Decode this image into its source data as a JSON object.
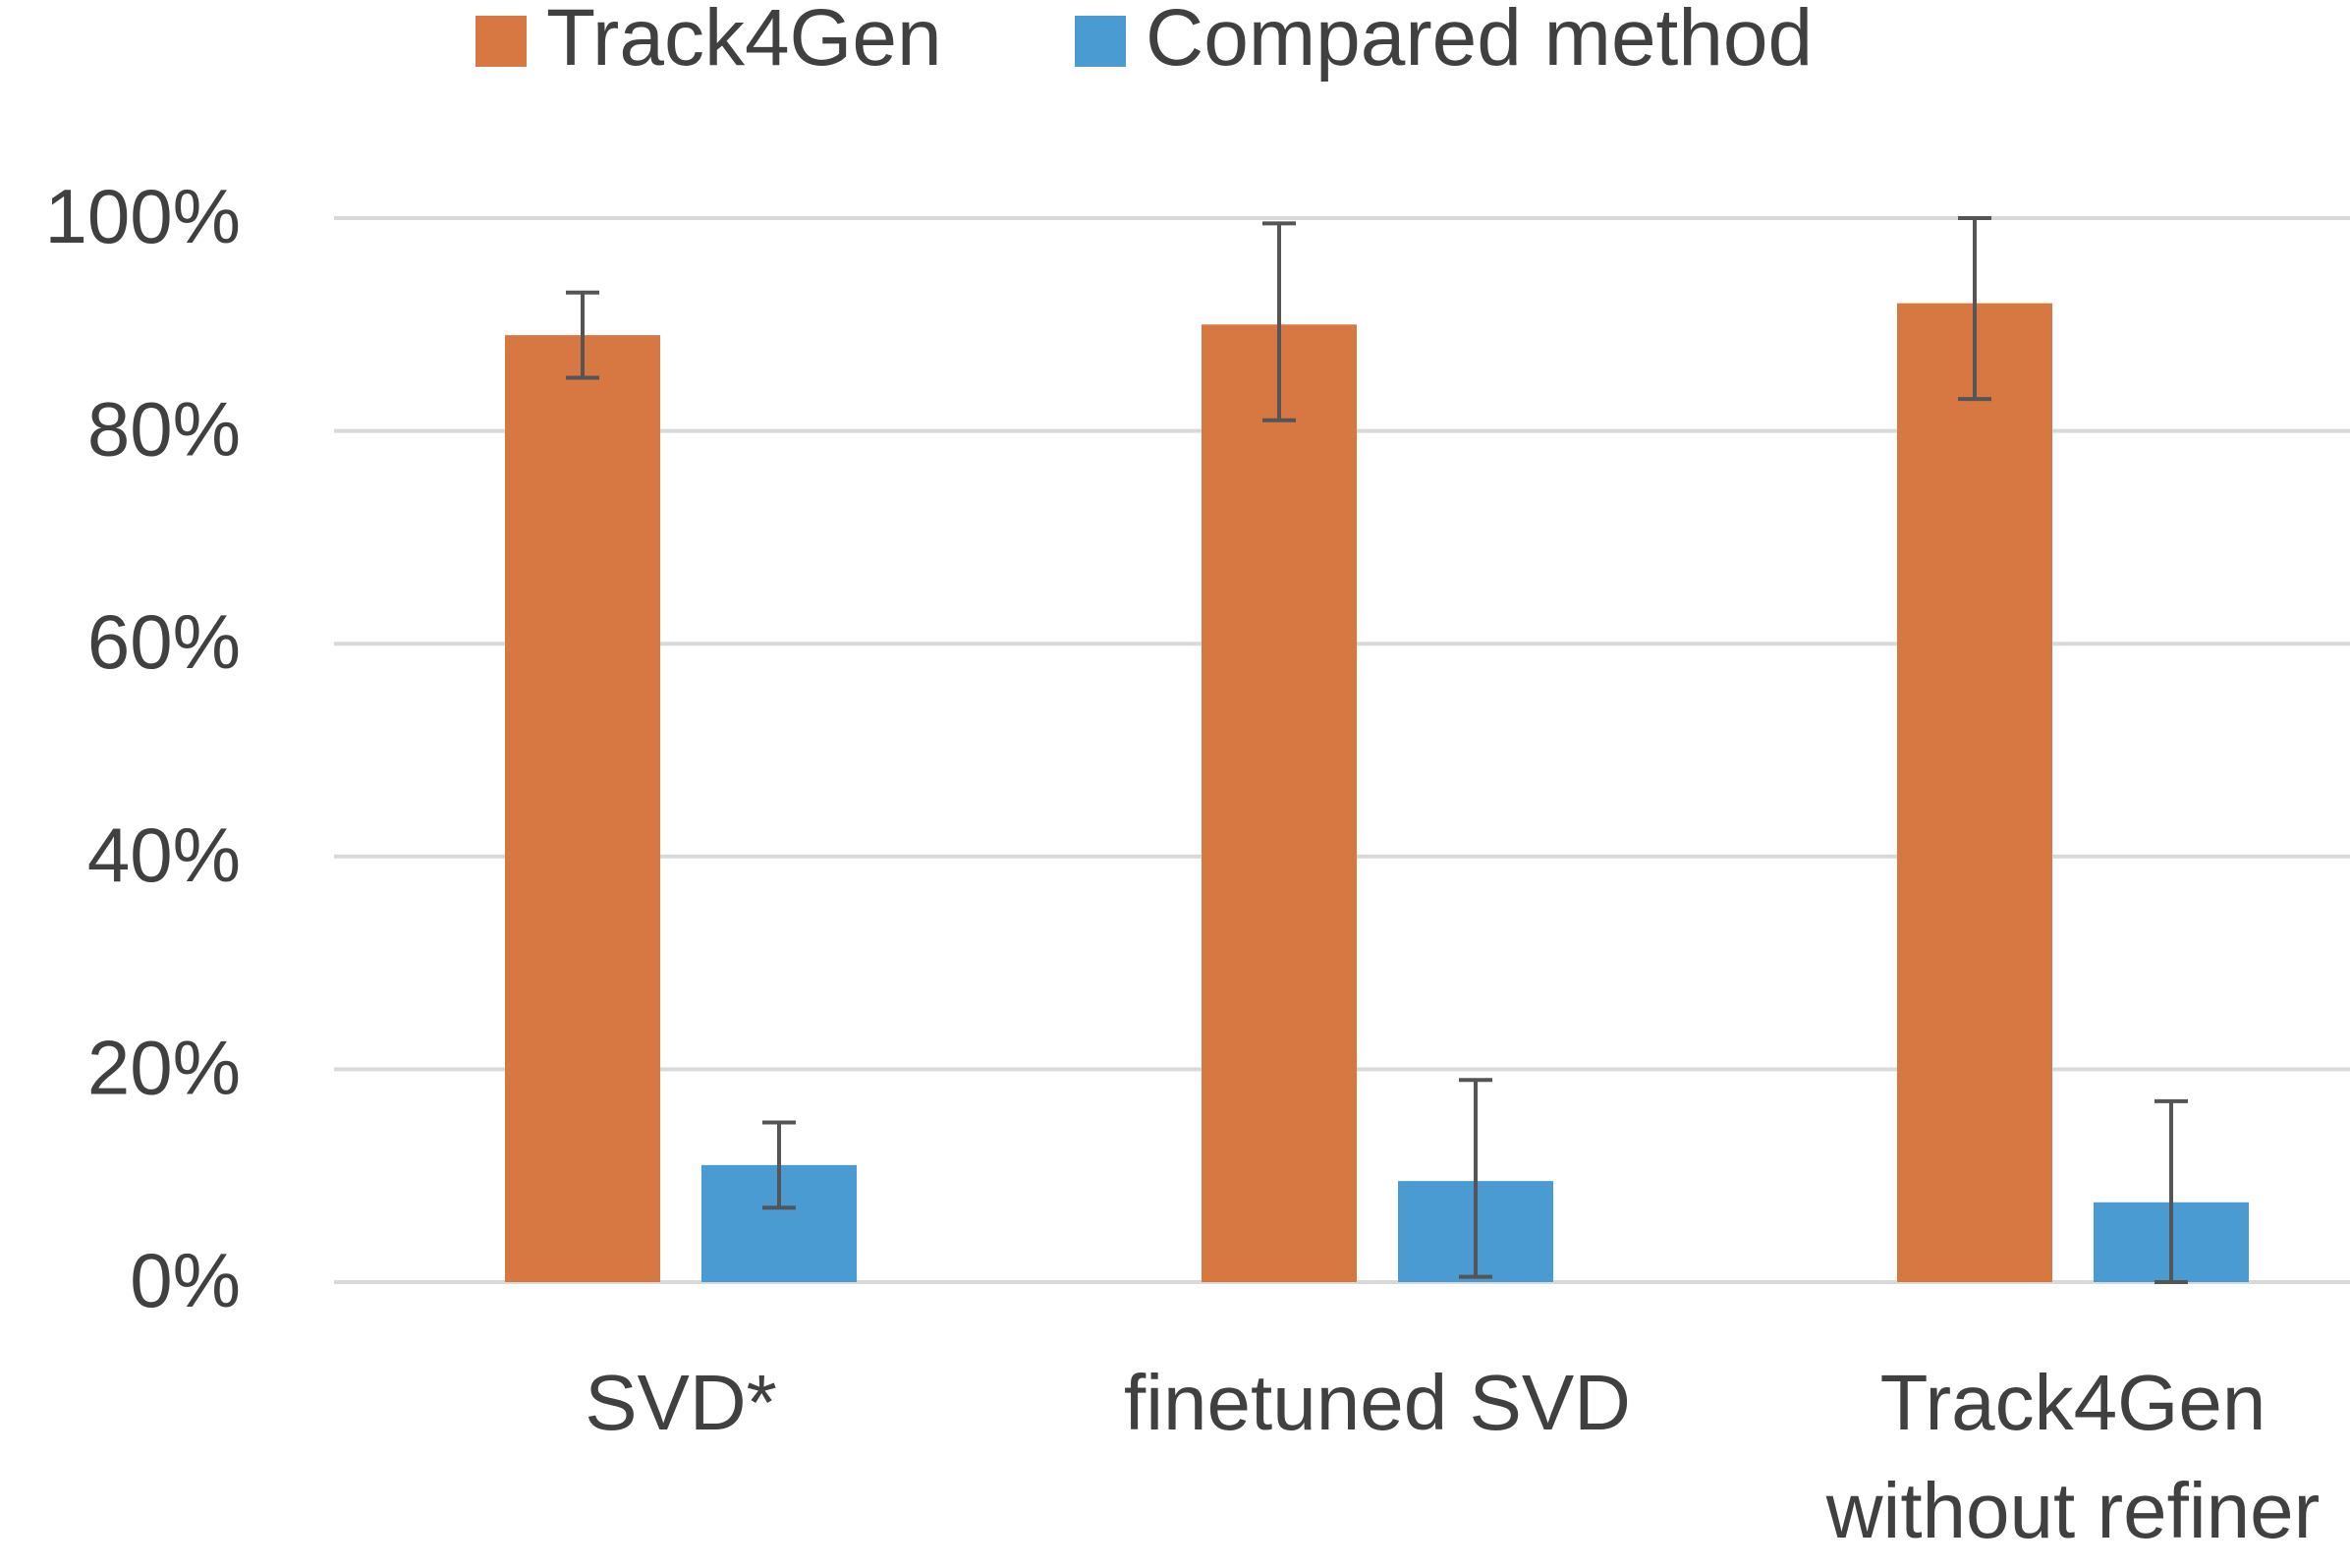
{
  "chart_data": {
    "type": "bar",
    "categories": [
      "SVD*",
      "finetuned SVD",
      "Track4Gen without refiner"
    ],
    "series": [
      {
        "name": "Track4Gen",
        "color": "#D77842",
        "values": [
          89,
          90,
          92
        ],
        "error_low": [
          85,
          81,
          83
        ],
        "error_high": [
          93,
          99.5,
          100
        ]
      },
      {
        "name": "Compared method",
        "color": "#4A9BD1",
        "values": [
          11,
          9.5,
          7.5
        ],
        "error_low": [
          7,
          0.5,
          0
        ],
        "error_high": [
          15,
          19,
          17
        ]
      }
    ],
    "title": "",
    "xlabel": "",
    "ylabel": "",
    "ylim": [
      0,
      100
    ],
    "yticks": [
      {
        "value": 0,
        "label": "0%"
      },
      {
        "value": 20,
        "label": "20%"
      },
      {
        "value": 40,
        "label": "40%"
      },
      {
        "value": 60,
        "label": "60%"
      },
      {
        "value": 80,
        "label": "80%"
      },
      {
        "value": 100,
        "label": "100%"
      }
    ],
    "category_label_lines": [
      [
        "SVD*"
      ],
      [
        "finetuned SVD"
      ],
      [
        "Track4Gen",
        "without refiner"
      ]
    ],
    "grid": true,
    "legend_position": "top"
  }
}
